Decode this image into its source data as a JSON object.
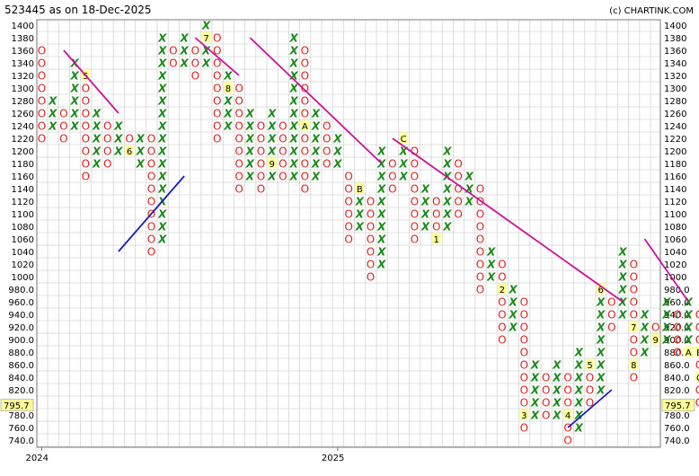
{
  "header": {
    "title": "523445 as on 18-Dec-2025",
    "copyright": "(c) CHARTINK.COM"
  },
  "last_price_label": "795.7",
  "colors": {
    "x_symbol": "#1a8a1a",
    "o_symbol": "#e02020",
    "trend_down": "#cc1199",
    "trend_up": "#1a1acc",
    "grid": "#d6d6d6",
    "label_bg": "#ffff99"
  },
  "chart_data": {
    "type": "point-and-figure",
    "box_size": 20,
    "y_range": [
      740,
      1400
    ],
    "y_ticks": [
      "1400",
      "1380",
      "1360",
      "1340",
      "1320",
      "1300",
      "1280",
      "1260",
      "1240",
      "1220",
      "1200",
      "1180",
      "1160",
      "1140",
      "1120",
      "1100",
      "1080",
      "1060",
      "1040",
      "1020",
      "1000",
      "980.0",
      "960.0",
      "940.0",
      "920.0",
      "900.0",
      "880.0",
      "860.0",
      "840.0",
      "820.0",
      "800.0",
      "780.0",
      "760.0",
      "740.0"
    ],
    "x_axis_labels": [
      {
        "label": "2024",
        "column": 0
      },
      {
        "label": "2025",
        "column": 27
      }
    ],
    "columns": [
      {
        "type": "O",
        "high": 1360,
        "low": 1220
      },
      {
        "type": "X",
        "high": 1280,
        "low": 1240
      },
      {
        "type": "O",
        "high": 1260,
        "low": 1220
      },
      {
        "type": "X",
        "high": 1340,
        "low": 1240
      },
      {
        "type": "O",
        "high": 1320,
        "low": 1160,
        "markers": [
          {
            "value": 1320,
            "label": "5"
          }
        ]
      },
      {
        "type": "X",
        "high": 1260,
        "low": 1180
      },
      {
        "type": "O",
        "high": 1240,
        "low": 1180
      },
      {
        "type": "X",
        "high": 1240,
        "low": 1200
      },
      {
        "type": "O",
        "high": 1220,
        "low": 1200,
        "markers": [
          {
            "value": 1200,
            "label": "6"
          }
        ]
      },
      {
        "type": "X",
        "high": 1220,
        "low": 1180
      },
      {
        "type": "O",
        "high": 1220,
        "low": 1040
      },
      {
        "type": "X",
        "high": 1380,
        "low": 1060
      },
      {
        "type": "O",
        "high": 1360,
        "low": 1340
      },
      {
        "type": "X",
        "high": 1380,
        "low": 1340
      },
      {
        "type": "O",
        "high": 1360,
        "low": 1320
      },
      {
        "type": "X",
        "high": 1400,
        "low": 1340,
        "markers": [
          {
            "value": 1380,
            "label": "7"
          }
        ]
      },
      {
        "type": "O",
        "high": 1380,
        "low": 1220
      },
      {
        "type": "X",
        "high": 1320,
        "low": 1240,
        "markers": [
          {
            "value": 1300,
            "label": "8"
          }
        ]
      },
      {
        "type": "O",
        "high": 1300,
        "low": 1140
      },
      {
        "type": "X",
        "high": 1260,
        "low": 1160
      },
      {
        "type": "O",
        "high": 1240,
        "low": 1140
      },
      {
        "type": "X",
        "high": 1260,
        "low": 1160,
        "markers": [
          {
            "value": 1180,
            "label": "9"
          }
        ]
      },
      {
        "type": "O",
        "high": 1240,
        "low": 1160
      },
      {
        "type": "X",
        "high": 1380,
        "low": 1160
      },
      {
        "type": "O",
        "high": 1360,
        "low": 1140,
        "markers": [
          {
            "value": 1240,
            "label": "A"
          }
        ]
      },
      {
        "type": "X",
        "high": 1260,
        "low": 1160
      },
      {
        "type": "O",
        "high": 1240,
        "low": 1180
      },
      {
        "type": "X",
        "high": 1220,
        "low": 1180
      },
      {
        "type": "O",
        "high": 1160,
        "low": 1060
      },
      {
        "type": "X",
        "high": 1140,
        "low": 1080,
        "markers": [
          {
            "value": 1140,
            "label": "B"
          }
        ]
      },
      {
        "type": "O",
        "high": 1120,
        "low": 1000
      },
      {
        "type": "X",
        "high": 1200,
        "low": 1020
      },
      {
        "type": "O",
        "high": 1180,
        "low": 1140
      },
      {
        "type": "X",
        "high": 1220,
        "low": 1160,
        "markers": [
          {
            "value": 1220,
            "label": "C"
          }
        ]
      },
      {
        "type": "O",
        "high": 1200,
        "low": 1060
      },
      {
        "type": "X",
        "high": 1140,
        "low": 1080
      },
      {
        "type": "O",
        "high": 1120,
        "low": 1060,
        "markers": [
          {
            "value": 1060,
            "label": "1"
          }
        ]
      },
      {
        "type": "X",
        "high": 1200,
        "low": 1080
      },
      {
        "type": "O",
        "high": 1180,
        "low": 1100
      },
      {
        "type": "X",
        "high": 1160,
        "low": 1120
      },
      {
        "type": "O",
        "high": 1140,
        "low": 980
      },
      {
        "type": "X",
        "high": 1040,
        "low": 1000
      },
      {
        "type": "O",
        "high": 1020,
        "low": 900,
        "markers": [
          {
            "value": 980,
            "label": "2"
          }
        ]
      },
      {
        "type": "X",
        "high": 980,
        "low": 920
      },
      {
        "type": "O",
        "high": 960,
        "low": 760,
        "markers": [
          {
            "value": 780,
            "label": "3"
          }
        ]
      },
      {
        "type": "X",
        "high": 860,
        "low": 780
      },
      {
        "type": "O",
        "high": 840,
        "low": 780
      },
      {
        "type": "X",
        "high": 860,
        "low": 780
      },
      {
        "type": "O",
        "high": 840,
        "low": 740,
        "markers": [
          {
            "value": 780,
            "label": "4"
          }
        ]
      },
      {
        "type": "X",
        "high": 880,
        "low": 760
      },
      {
        "type": "O",
        "high": 860,
        "low": 800,
        "markers": [
          {
            "value": 860,
            "label": "5"
          }
        ]
      },
      {
        "type": "X",
        "high": 980,
        "low": 820,
        "markers": [
          {
            "value": 980,
            "label": "6"
          }
        ]
      },
      {
        "type": "O",
        "high": 960,
        "low": 920
      },
      {
        "type": "X",
        "high": 1040,
        "low": 940
      },
      {
        "type": "O",
        "high": 1020,
        "low": 840,
        "markers": [
          {
            "value": 920,
            "label": "7"
          },
          {
            "value": 860,
            "label": "8"
          }
        ]
      },
      {
        "type": "X",
        "high": 940,
        "low": 880
      },
      {
        "type": "O",
        "high": 920,
        "low": 900,
        "markers": [
          {
            "value": 900,
            "label": "9"
          }
        ]
      },
      {
        "type": "X",
        "high": 960,
        "low": 900
      },
      {
        "type": "O",
        "high": 940,
        "low": 880
      },
      {
        "type": "X",
        "high": 960,
        "low": 880,
        "markers": [
          {
            "value": 880,
            "label": "A"
          }
        ]
      },
      {
        "type": "O",
        "high": 940,
        "low": 800,
        "markers": [
          {
            "value": 880,
            "label": "B"
          },
          {
            "value": 840,
            "label": "C"
          }
        ]
      }
    ],
    "trendlines": [
      {
        "kind": "resistance",
        "from": {
          "col": 2,
          "price": 1360
        },
        "to": {
          "col": 7,
          "price": 1260
        }
      },
      {
        "kind": "resistance",
        "from": {
          "col": 14,
          "price": 1380
        },
        "to": {
          "col": 18,
          "price": 1320
        }
      },
      {
        "kind": "resistance",
        "from": {
          "col": 19,
          "price": 1380
        },
        "to": {
          "col": 31,
          "price": 1180
        }
      },
      {
        "kind": "resistance",
        "from": {
          "col": 32,
          "price": 1220
        },
        "to": {
          "col": 53,
          "price": 960
        }
      },
      {
        "kind": "resistance",
        "from": {
          "col": 55,
          "price": 1060
        },
        "to": {
          "col": 59,
          "price": 960
        }
      },
      {
        "kind": "support",
        "from": {
          "col": 7,
          "price": 1040
        },
        "to": {
          "col": 13,
          "price": 1160
        }
      },
      {
        "kind": "support",
        "from": {
          "col": 48,
          "price": 760
        },
        "to": {
          "col": 52,
          "price": 820
        }
      }
    ],
    "last_price": 795.7
  }
}
